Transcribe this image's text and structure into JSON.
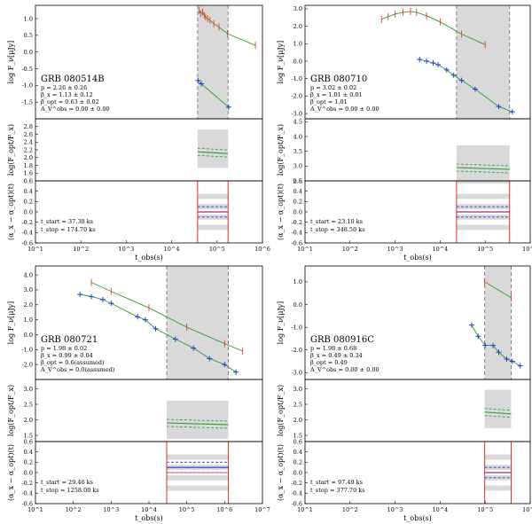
{
  "colors": {
    "optical": "#e8392b",
    "xray": "#1f3fd6",
    "model": "#2e9b2e",
    "shade": "#d9d9d9",
    "edge": "#e0302a"
  },
  "chart_data": [
    {
      "type": "scatter",
      "title": "GRB 080514B",
      "params": [
        "p = 2.26 ± 0.26",
        "β_x = 1.13 ± 0.12",
        "β_opt = 0.63 ± 0.02",
        "A_V^obs = 0.00 ± 0.00"
      ],
      "times": [
        "t_start = 37.30 ks",
        "t_stop = 174.70 ks"
      ],
      "xlabel": "t_obs(s)",
      "ylabels": [
        "log F_ν[μJy]",
        "log(F_opt/F_x)",
        "(α_x − α_opt)(t)"
      ],
      "xlim": [
        10,
        1000000
      ],
      "xticks": [
        "10^1",
        "10^2",
        "10^3",
        "10^4",
        "10^5",
        "10^6"
      ],
      "flux_ylim": [
        -2.0,
        1.4
      ],
      "flux_yticks": [
        "1.0",
        "0.5",
        "0.0",
        "-0.5",
        "-1.0",
        "-1.5"
      ],
      "ratio_ylim": [
        1.4,
        3.0
      ],
      "ratio_yticks": [
        "2.8",
        "2.6",
        "2.4",
        "2.2",
        "2.0",
        "1.8",
        "1.6"
      ],
      "alpha_ylim": [
        -0.6,
        0.6
      ],
      "alpha_yticks": [
        "0.6",
        "0.4",
        "0.2",
        "0.0",
        "-0.2",
        "-0.4",
        "-0.6"
      ],
      "shade": [
        37300,
        174700
      ],
      "optical": [
        {
          "t": 40000,
          "f": 1.25
        },
        {
          "t": 44000,
          "f": 1.15
        },
        {
          "t": 48000,
          "f": 1.2
        },
        {
          "t": 52000,
          "f": 1.1
        },
        {
          "t": 56000,
          "f": 1.05
        },
        {
          "t": 62000,
          "f": 1.0
        },
        {
          "t": 70000,
          "f": 0.95
        },
        {
          "t": 85000,
          "f": 0.85
        },
        {
          "t": 110000,
          "f": 0.75
        },
        {
          "t": 170000,
          "f": 0.55
        },
        {
          "t": 700000,
          "f": 0.2
        }
      ],
      "xray": [
        {
          "t": 38000,
          "f": -0.85
        },
        {
          "t": 45000,
          "f": -0.95
        },
        {
          "t": 180000,
          "f": -1.65
        }
      ],
      "ratio_value": 2.15,
      "alpha_value": 0.0
    },
    {
      "type": "scatter",
      "title": "GRB 080710",
      "params": [
        "p = 3.02 ± 0.02",
        "β_x = 1.01 ± 0.01",
        "β_opt = 1.01",
        "A_V^obs = 0.00 ± 0.00"
      ],
      "times": [
        "t_start = 23.10 ks",
        "t_stop = 348.50 ks"
      ],
      "xlabel": "t_obs(s)",
      "ylabels": [
        "log F_ν[μJy]",
        "log(F_opt/F_x)",
        "(α_x − α_opt)(t)"
      ],
      "xlim": [
        10,
        1000000
      ],
      "xticks": [
        "10^1",
        "10^2",
        "10^3",
        "10^4",
        "10^5",
        "10^6"
      ],
      "flux_ylim": [
        -3.3,
        3.2
      ],
      "flux_yticks": [
        "3.0",
        "2.0",
        "1.0",
        "0.0",
        "-1.0",
        "-2.0",
        "-3.0"
      ],
      "ratio_ylim": [
        2.5,
        4.6
      ],
      "ratio_yticks": [
        "4.5",
        "4.0",
        "3.5",
        "3.0",
        "2.5"
      ],
      "alpha_ylim": [
        -0.6,
        0.6
      ],
      "alpha_yticks": [
        "0.6",
        "0.4",
        "0.2",
        "0.0",
        "-0.2",
        "-0.4",
        "-0.6"
      ],
      "shade": [
        23100,
        348500
      ],
      "optical": [
        {
          "t": 500,
          "f": 2.4
        },
        {
          "t": 700,
          "f": 2.55
        },
        {
          "t": 1000,
          "f": 2.7
        },
        {
          "t": 1500,
          "f": 2.8
        },
        {
          "t": 2200,
          "f": 2.85
        },
        {
          "t": 3000,
          "f": 2.8
        },
        {
          "t": 5000,
          "f": 2.6
        },
        {
          "t": 10000,
          "f": 2.25
        },
        {
          "t": 30000,
          "f": 1.55
        },
        {
          "t": 100000,
          "f": 0.95
        }
      ],
      "xray": [
        {
          "t": 3500,
          "f": 0.1
        },
        {
          "t": 5000,
          "f": 0.0
        },
        {
          "t": 7000,
          "f": -0.1
        },
        {
          "t": 9000,
          "f": -0.2
        },
        {
          "t": 14000,
          "f": -0.5
        },
        {
          "t": 20000,
          "f": -0.8
        },
        {
          "t": 30000,
          "f": -1.1
        },
        {
          "t": 60000,
          "f": -1.6
        },
        {
          "t": 200000,
          "f": -2.6
        },
        {
          "t": 400000,
          "f": -2.9
        }
      ],
      "ratio_value": 2.95,
      "alpha_value": 0.0
    },
    {
      "type": "scatter",
      "title": "GRB 080721",
      "params": [
        "p = 1.98 ± 0.02",
        "β_x = 0.99 ± 0.04",
        "β_opt = 0.6(assumed)",
        "A_V^obs = 0.0(assumed)"
      ],
      "times": [
        "t_start = 29.46 ks",
        "t_stop = 1258.00 ks"
      ],
      "xlabel": "t_obs(s)",
      "ylabels": [
        "log F_ν[μJy]",
        "log(F_opt/F_x)",
        "(α_x − α_opt)(t)"
      ],
      "xlim": [
        10,
        10000000
      ],
      "xticks": [
        "10^1",
        "10^2",
        "10^3",
        "10^4",
        "10^5",
        "10^6",
        "10^7"
      ],
      "flux_ylim": [
        -3.0,
        4.6
      ],
      "flux_yticks": [
        "4.0",
        "3.0",
        "2.0",
        "1.0",
        "0.0",
        "-1.0",
        "-2.0"
      ],
      "ratio_ylim": [
        1.3,
        3.3
      ],
      "ratio_yticks": [
        "3.0",
        "2.5",
        "2.0",
        "1.5"
      ],
      "alpha_ylim": [
        -0.6,
        0.6
      ],
      "alpha_yticks": [
        "0.6",
        "0.4",
        "0.2",
        "0.0",
        "-0.2",
        "-0.4",
        "-0.6"
      ],
      "shade": [
        29460,
        1258000
      ],
      "optical": [
        {
          "t": 300,
          "f": 3.5
        },
        {
          "t": 1000,
          "f": 2.9
        },
        {
          "t": 10000,
          "f": 1.8
        },
        {
          "t": 100000,
          "f": 0.5
        },
        {
          "t": 1000000,
          "f": -0.6
        },
        {
          "t": 3000000,
          "f": -1.1
        }
      ],
      "xray": [
        {
          "t": 150,
          "f": 2.7
        },
        {
          "t": 300,
          "f": 2.55
        },
        {
          "t": 600,
          "f": 2.35
        },
        {
          "t": 1000,
          "f": 2.1
        },
        {
          "t": 5000,
          "f": 1.2
        },
        {
          "t": 8000,
          "f": 1.0
        },
        {
          "t": 15000,
          "f": 0.4
        },
        {
          "t": 50000,
          "f": -0.3
        },
        {
          "t": 150000,
          "f": -0.9
        },
        {
          "t": 400000,
          "f": -1.6
        },
        {
          "t": 1000000,
          "f": -2.0
        },
        {
          "t": 2000000,
          "f": -2.5
        }
      ],
      "ratio_value": 1.9,
      "alpha_value": 0.1
    },
    {
      "type": "scatter",
      "title": "GRB 080916C",
      "params": [
        "p = 1.98 ± 0.68",
        "β_x = 0.49 ± 0.34",
        "β_opt = 0.49",
        "A_V^obs = 0.00 ± 0.00"
      ],
      "times": [
        "t_start = 97.49 ks",
        "t_stop = 377.70 ks"
      ],
      "xlabel": "t_obs(s)",
      "ylabels": [
        "log F_ν[μJy]",
        "log(F_opt/F_x)",
        "(α_x − α_opt)(t)"
      ],
      "xlim": [
        10,
        1000000
      ],
      "xticks": [
        "10^1",
        "10^2",
        "10^3",
        "10^4",
        "10^5",
        "10^6"
      ],
      "flux_ylim": [
        -3.3,
        1.7
      ],
      "flux_yticks": [
        "1.0",
        "0.0",
        "-1.0",
        "-2.0",
        "-3.0"
      ],
      "ratio_ylim": [
        1.3,
        3.3
      ],
      "ratio_yticks": [
        "3.0",
        "2.5",
        "2.0",
        "1.5"
      ],
      "alpha_ylim": [
        -0.6,
        0.6
      ],
      "alpha_yticks": [
        "0.6",
        "0.4",
        "0.2",
        "0.0",
        "-0.2",
        "-0.4",
        "-0.6"
      ],
      "shade": [
        97490,
        377700
      ],
      "optical": [
        {
          "t": 97490,
          "f": 1.0
        },
        {
          "t": 377700,
          "f": 0.3
        }
      ],
      "xray": [
        {
          "t": 50000,
          "f": -0.9
        },
        {
          "t": 70000,
          "f": -1.4
        },
        {
          "t": 100000,
          "f": -1.8
        },
        {
          "t": 150000,
          "f": -1.8
        },
        {
          "t": 200000,
          "f": -2.1
        },
        {
          "t": 300000,
          "f": -2.4
        },
        {
          "t": 400000,
          "f": -2.5
        },
        {
          "t": 600000,
          "f": -2.7
        }
      ],
      "ratio_value": 2.25,
      "alpha_value": 0.0
    }
  ]
}
